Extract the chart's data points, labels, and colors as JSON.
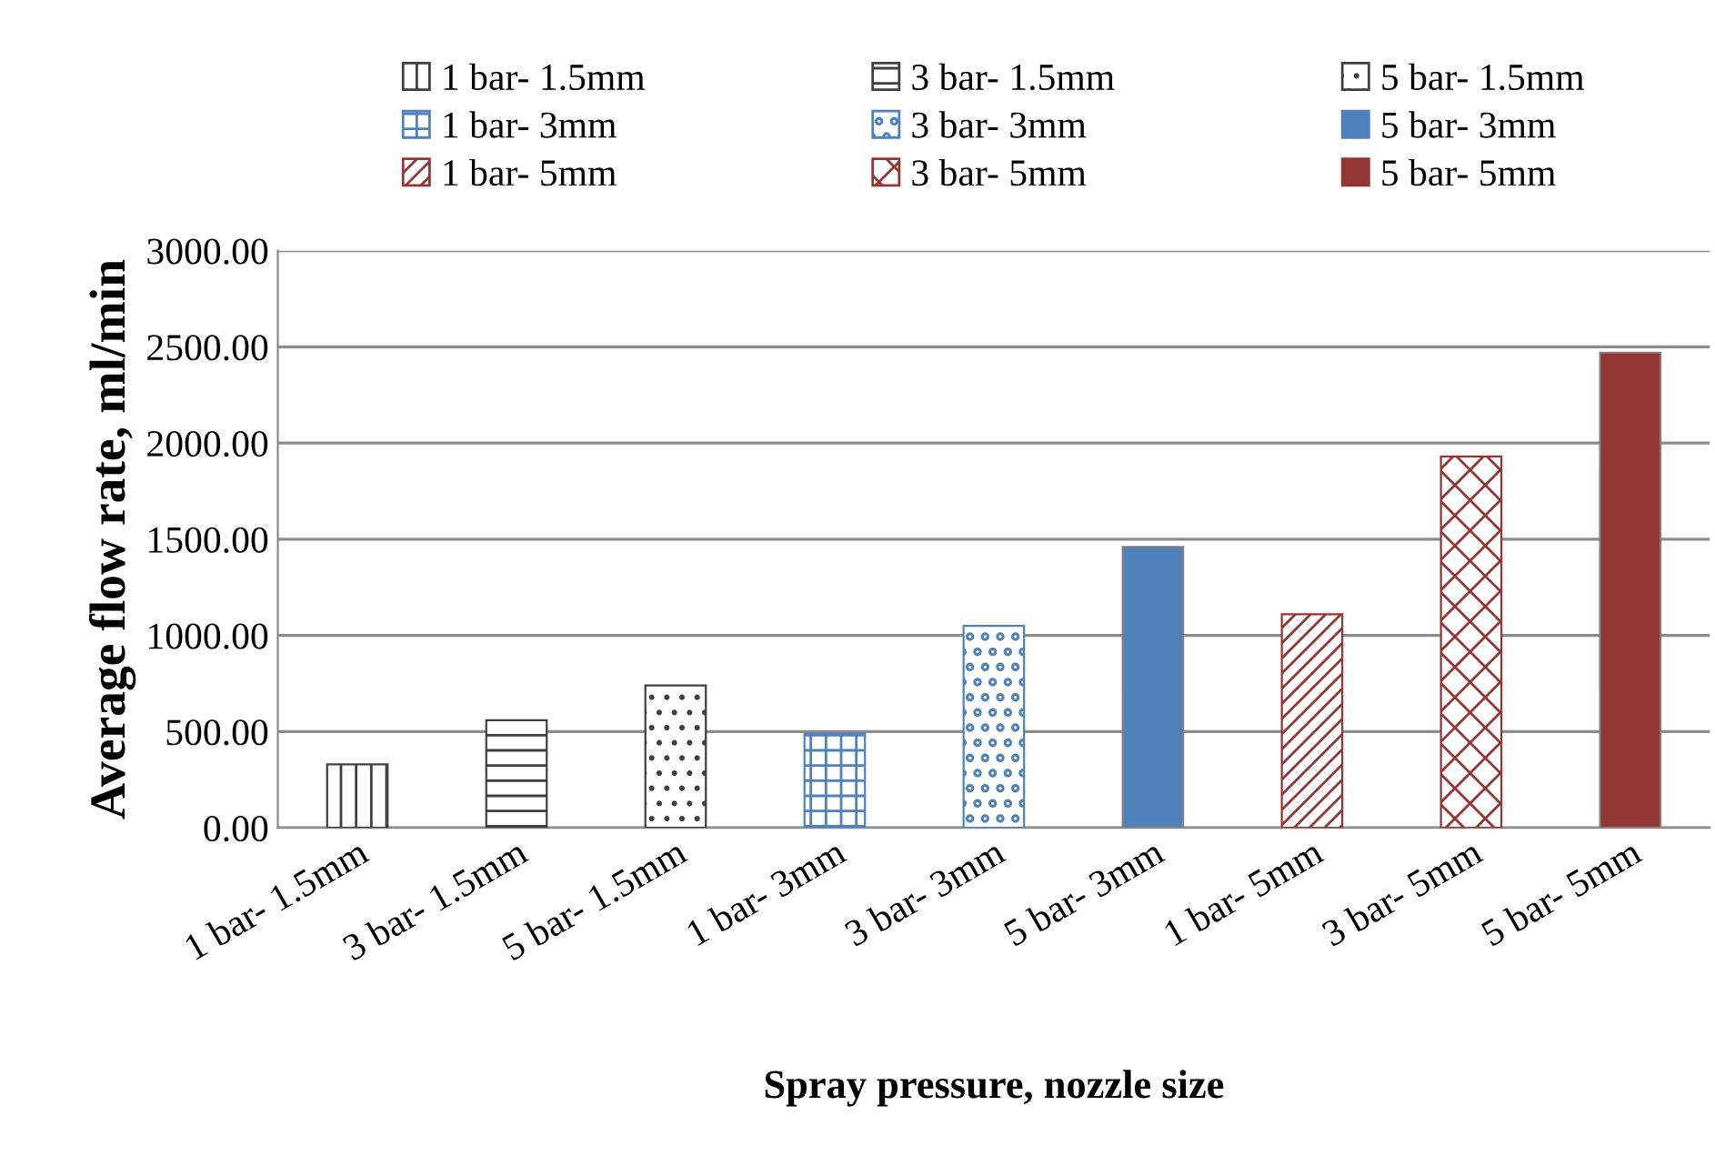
{
  "chart_data": {
    "type": "bar",
    "xlabel": "Spray pressure, nozzle size",
    "ylabel": "Average flow rate, ml/min",
    "categories": [
      "1 bar- 1.5mm",
      "3 bar- 1.5mm",
      "5 bar- 1.5mm",
      "1 bar- 3mm",
      "3 bar- 3mm",
      "5 bar- 3mm",
      "1 bar- 5mm",
      "3 bar- 5mm",
      "5 bar- 5mm"
    ],
    "series": [
      {
        "name": "1 bar- 1.5mm",
        "color": "#404040",
        "values": [
          330,
          null,
          null,
          null,
          null,
          null,
          null,
          null,
          null
        ]
      },
      {
        "name": "3 bar- 1.5mm",
        "color": "#404040",
        "values": [
          null,
          560,
          null,
          null,
          null,
          null,
          null,
          null,
          null
        ]
      },
      {
        "name": "5 bar- 1.5mm",
        "color": "#404040",
        "values": [
          null,
          null,
          740,
          null,
          null,
          null,
          null,
          null,
          null
        ]
      },
      {
        "name": "1 bar- 3mm",
        "color": "#4f81bd",
        "values": [
          null,
          null,
          null,
          490,
          null,
          null,
          null,
          null,
          null
        ]
      },
      {
        "name": "3 bar- 3mm",
        "color": "#4f81bd",
        "values": [
          null,
          null,
          null,
          null,
          1050,
          null,
          null,
          null,
          null
        ]
      },
      {
        "name": "5 bar- 3mm",
        "color": "#4f81bd",
        "values": [
          null,
          null,
          null,
          null,
          null,
          1460,
          null,
          null,
          null
        ]
      },
      {
        "name": "1 bar- 5mm",
        "color": "#943634",
        "values": [
          null,
          null,
          null,
          null,
          null,
          null,
          1110,
          null,
          null
        ]
      },
      {
        "name": "3 bar- 5mm",
        "color": "#943634",
        "values": [
          null,
          null,
          null,
          null,
          null,
          null,
          null,
          1930,
          null
        ]
      },
      {
        "name": "5 bar- 5mm",
        "color": "#943634",
        "values": [
          null,
          null,
          null,
          null,
          null,
          null,
          null,
          null,
          2470
        ]
      }
    ],
    "ylim": [
      0,
      3000
    ],
    "yticks": [
      {
        "value": 0,
        "label": "0.00"
      },
      {
        "value": 500,
        "label": "500.00"
      },
      {
        "value": 1000,
        "label": "1000.00"
      },
      {
        "value": 1500,
        "label": "1500.00"
      },
      {
        "value": 2000,
        "label": "2000.00"
      },
      {
        "value": 2500,
        "label": "2500.00"
      },
      {
        "value": 3000,
        "label": "3000.00"
      }
    ],
    "grid": "y",
    "legend": "top"
  }
}
